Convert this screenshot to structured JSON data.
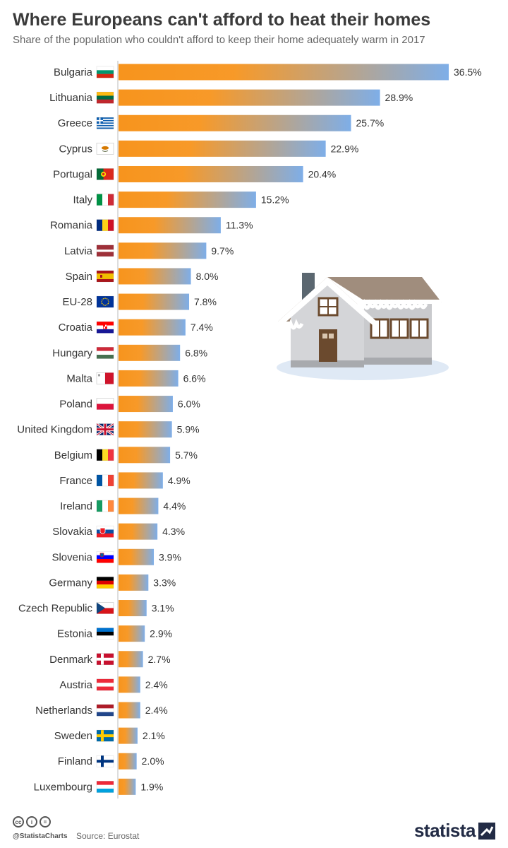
{
  "header": {
    "title": "Where Europeans can't afford to heat their homes",
    "subtitle": "Share of the population who couldn't afford to keep their home adequately warm in 2017"
  },
  "chart_data": {
    "type": "bar",
    "orientation": "horizontal",
    "title": "Where Europeans can't afford to heat their homes",
    "subtitle": "Share of the population who couldn't afford to keep their home adequately warm in 2017",
    "xlabel": "",
    "ylabel": "",
    "unit": "%",
    "xlim": [
      0,
      36.5
    ],
    "grid": false,
    "legend": "none",
    "categories": [
      "Bulgaria",
      "Lithuania",
      "Greece",
      "Cyprus",
      "Portugal",
      "Italy",
      "Romania",
      "Latvia",
      "Spain",
      "EU-28",
      "Croatia",
      "Hungary",
      "Malta",
      "Poland",
      "United Kingdom",
      "Belgium",
      "France",
      "Ireland",
      "Slovakia",
      "Slovenia",
      "Germany",
      "Czech Republic",
      "Estonia",
      "Denmark",
      "Austria",
      "Netherlands",
      "Sweden",
      "Finland",
      "Luxembourg"
    ],
    "values": [
      36.5,
      28.9,
      25.7,
      22.9,
      20.4,
      15.2,
      11.3,
      9.7,
      8.0,
      7.8,
      7.4,
      6.8,
      6.6,
      6.0,
      5.9,
      5.7,
      4.9,
      4.4,
      4.3,
      3.9,
      3.3,
      3.1,
      2.9,
      2.7,
      2.4,
      2.4,
      2.1,
      2.0,
      1.9
    ],
    "value_labels": [
      "36.5%",
      "28.9%",
      "25.7%",
      "22.9%",
      "20.4%",
      "15.2%",
      "11.3%",
      "9.7%",
      "8.0%",
      "7.8%",
      "7.4%",
      "6.8%",
      "6.6%",
      "6.0%",
      "5.9%",
      "5.7%",
      "4.9%",
      "4.4%",
      "4.3%",
      "3.9%",
      "3.3%",
      "3.1%",
      "2.9%",
      "2.7%",
      "2.4%",
      "2.4%",
      "2.1%",
      "2.0%",
      "1.9%"
    ],
    "flags": [
      "bulgaria",
      "lithuania",
      "greece",
      "cyprus",
      "portugal",
      "italy",
      "romania",
      "latvia",
      "spain",
      "eu",
      "croatia",
      "hungary",
      "malta",
      "poland",
      "uk",
      "belgium",
      "france",
      "ireland",
      "slovakia",
      "slovenia",
      "germany",
      "czech",
      "estonia",
      "denmark",
      "austria",
      "netherlands",
      "sweden",
      "finland",
      "luxembourg"
    ],
    "colors": {
      "bar_start": "#f7941d",
      "bar_end": "#7eaee8",
      "axis": "#bbbbbb"
    }
  },
  "illustration": {
    "icon": "snowy-house-icon"
  },
  "footer": {
    "handle": "@StatistaCharts",
    "source": "Source: Eurostat",
    "brand": "statista",
    "cc_icons": [
      "cc",
      "by",
      "nd"
    ]
  }
}
